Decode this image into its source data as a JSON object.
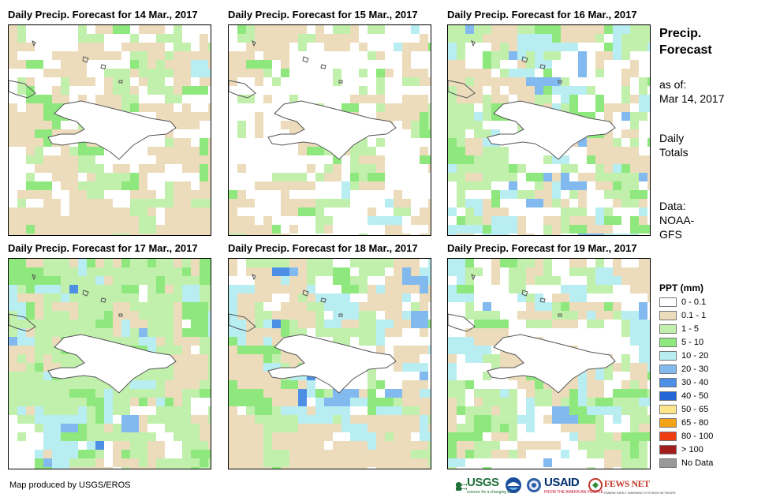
{
  "panels": [
    {
      "title": "Daily Precip. Forecast for 14 Mar., 2017"
    },
    {
      "title": "Daily Precip. Forecast for 15 Mar., 2017"
    },
    {
      "title": "Daily Precip. Forecast for 16 Mar., 2017"
    },
    {
      "title": "Daily Precip. Forecast for 17 Mar., 2017"
    },
    {
      "title": "Daily Precip. Forecast for 18 Mar., 2017"
    },
    {
      "title": "Daily Precip. Forecast for 19 Mar., 2017"
    }
  ],
  "side": {
    "title_line1": "Precip.",
    "title_line2": "Forecast",
    "asof_line1": "as of:",
    "asof_line2": "Mar 14, 2017",
    "daily_line1": "Daily",
    "daily_line2": "Totals",
    "data_line1": "Data:",
    "data_line2": "NOAA-",
    "data_line3": "GFS"
  },
  "legend": {
    "title": "PPT (mm)",
    "items": [
      {
        "label": "0 - 0.1",
        "color": "#ffffff"
      },
      {
        "label": "0.1 - 1",
        "color": "#ecdcbc"
      },
      {
        "label": "1 - 5",
        "color": "#c1f0ac"
      },
      {
        "label": "5 - 10",
        "color": "#8fe87d"
      },
      {
        "label": "10 - 20",
        "color": "#b8eef2"
      },
      {
        "label": "20 - 30",
        "color": "#82b9ef"
      },
      {
        "label": "30 - 40",
        "color": "#4d8fe4"
      },
      {
        "label": "40 - 50",
        "color": "#2466d6"
      },
      {
        "label": "50 - 65",
        "color": "#fde68a"
      },
      {
        "label": "65 - 80",
        "color": "#f5a316"
      },
      {
        "label": "80 - 100",
        "color": "#ee3b10"
      },
      {
        "label": "> 100",
        "color": "#a41d1d"
      },
      {
        "label": "No Data",
        "color": "#999999"
      }
    ]
  },
  "footer": {
    "credit": "Map produced by USGS/EROS",
    "logo_usgs": "USGS",
    "logo_usgs_tagline": "science for a changing world",
    "logo_usaid": "USAID",
    "logo_usaid_tagline": "FROM THE AMERICAN PEOPLE",
    "logo_fewsnet": "FEWS NET",
    "logo_fewsnet_tagline": "FAMINE EARLY WARNING SYSTEMS NETWORK"
  }
}
